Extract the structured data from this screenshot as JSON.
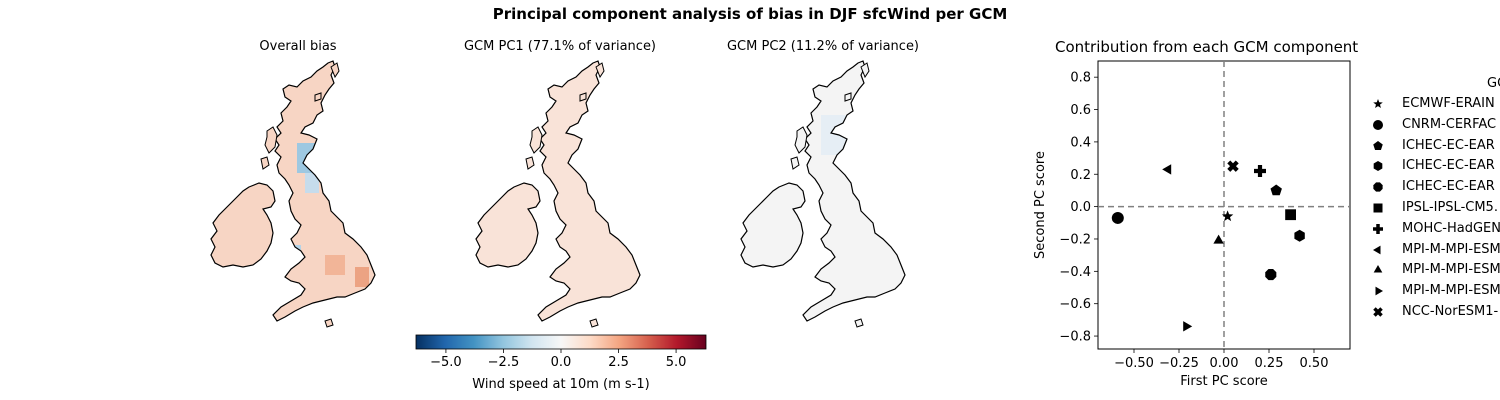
{
  "figure": {
    "suptitle": "Principal component analysis of bias in DJF sfcWind per GCM"
  },
  "maps": [
    {
      "title": "Overall bias"
    },
    {
      "title": "GCM PC1 (77.1% of variance)"
    },
    {
      "title": "GCM PC2 (11.2% of variance)"
    }
  ],
  "colorbar": {
    "label": "Wind speed at 10m (m s-1)",
    "ticks": [
      "−5.0",
      "−2.5",
      "0.0",
      "2.5",
      "5.0"
    ],
    "tick_values": [
      -5.0,
      -2.5,
      0.0,
      2.5,
      5.0
    ],
    "range": [
      -6.3,
      6.3
    ],
    "colormap": "RdBu_r"
  },
  "chart_data": {
    "type": "scatter",
    "title": "Contribution from each GCM component",
    "xlabel": "First PC score",
    "ylabel": "Second PC score",
    "xlim": [
      -0.7,
      0.7
    ],
    "ylim": [
      -0.88,
      0.9
    ],
    "xticks": [
      "−0.50",
      "−0.25",
      "0.00",
      "0.25",
      "0.50"
    ],
    "xtick_values": [
      -0.5,
      -0.25,
      0.0,
      0.25,
      0.5
    ],
    "yticks": [
      "−0.8",
      "−0.6",
      "−0.4",
      "−0.2",
      "0.0",
      "0.2",
      "0.4",
      "0.6",
      "0.8"
    ],
    "ytick_values": [
      -0.8,
      -0.6,
      -0.4,
      -0.2,
      0.0,
      0.2,
      0.4,
      0.6,
      0.8
    ],
    "reference_lines": {
      "x": 0,
      "y": 0,
      "style": "dashed",
      "color": "#808080"
    },
    "legend_title": "GC",
    "legend_placement": "right",
    "series": [
      {
        "name": "ECMWF-ERAIN",
        "marker": "star",
        "x": 0.02,
        "y": -0.06
      },
      {
        "name": "CNRM-CERFAC",
        "marker": "circle",
        "x": -0.59,
        "y": -0.07
      },
      {
        "name": "ICHEC-EC-EAR",
        "marker": "pentagon",
        "x": 0.29,
        "y": 0.1
      },
      {
        "name": "ICHEC-EC-EAR",
        "marker": "hexagon",
        "x": 0.42,
        "y": -0.18
      },
      {
        "name": "ICHEC-EC-EAR",
        "marker": "octagon",
        "x": 0.26,
        "y": -0.42
      },
      {
        "name": "IPSL-IPSL-CM5.",
        "marker": "square",
        "x": 0.37,
        "y": -0.05
      },
      {
        "name": "MOHC-HadGEN",
        "marker": "plus",
        "x": 0.2,
        "y": 0.22
      },
      {
        "name": "MPI-M-MPI-ESM",
        "marker": "triangle-left",
        "x": -0.31,
        "y": 0.23
      },
      {
        "name": "MPI-M-MPI-ESM",
        "marker": "triangle-up",
        "x": -0.03,
        "y": -0.21
      },
      {
        "name": "MPI-M-MPI-ESM",
        "marker": "triangle-right",
        "x": -0.21,
        "y": -0.74
      },
      {
        "name": "NCC-NorESM1-",
        "marker": "x-filled",
        "x": 0.05,
        "y": 0.25
      }
    ]
  }
}
